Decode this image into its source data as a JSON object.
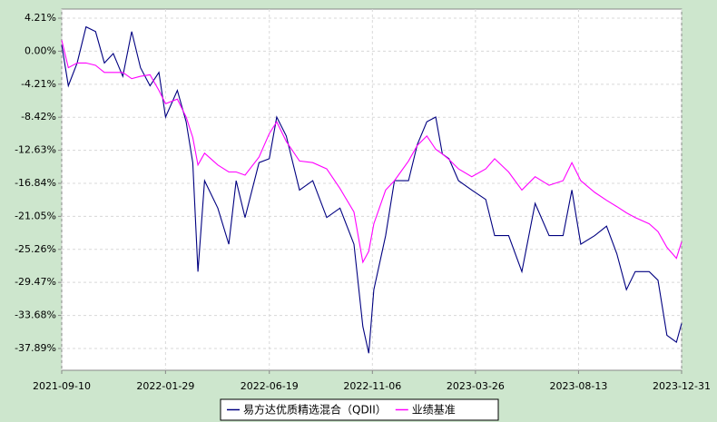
{
  "chart_data": {
    "type": "line",
    "x": [
      "2021-09-10",
      "2021-09-19",
      "2021-10-01",
      "2021-10-13",
      "2021-10-26",
      "2021-11-07",
      "2021-11-19",
      "2021-12-02",
      "2021-12-14",
      "2021-12-26",
      "2022-01-08",
      "2022-01-20",
      "2022-01-29",
      "2022-02-14",
      "2022-02-26",
      "2022-03-07",
      "2022-03-14",
      "2022-03-23",
      "2022-04-10",
      "2022-04-25",
      "2022-05-05",
      "2022-05-17",
      "2022-06-05",
      "2022-06-19",
      "2022-06-29",
      "2022-07-12",
      "2022-07-30",
      "2022-08-17",
      "2022-09-05",
      "2022-09-23",
      "2022-10-12",
      "2022-10-24",
      "2022-11-01",
      "2022-11-08",
      "2022-11-24",
      "2022-12-06",
      "2022-12-25",
      "2023-01-06",
      "2023-01-19",
      "2023-01-31",
      "2023-02-09",
      "2023-02-18",
      "2023-03-03",
      "2023-03-21",
      "2023-04-09",
      "2023-04-21",
      "2023-05-10",
      "2023-05-28",
      "2023-06-15",
      "2023-07-04",
      "2023-07-23",
      "2023-08-04",
      "2023-08-16",
      "2023-09-04",
      "2023-09-20",
      "2023-10-04",
      "2023-10-17",
      "2023-10-29",
      "2023-11-17",
      "2023-11-29",
      "2023-12-11",
      "2023-12-24",
      "2023-12-31"
    ],
    "series": [
      {
        "name": "易方达优质精选混合（QDII）",
        "color": "#000080",
        "values": [
          0.8,
          -4.4,
          -1.5,
          3.1,
          2.5,
          -1.5,
          -0.3,
          -3.2,
          2.5,
          -2.1,
          -4.4,
          -2.7,
          -8.4,
          -5.0,
          -9.0,
          -14.2,
          -28.1,
          -16.5,
          -20.0,
          -24.6,
          -16.5,
          -21.2,
          -14.2,
          -13.7,
          -8.4,
          -10.8,
          -17.7,
          -16.5,
          -21.2,
          -20.0,
          -24.6,
          -35.1,
          -38.5,
          -30.4,
          -23.5,
          -16.5,
          -16.5,
          -11.9,
          -9.0,
          -8.4,
          -13.1,
          -13.7,
          -16.5,
          -17.7,
          -18.9,
          -23.5,
          -23.5,
          -28.1,
          -19.4,
          -23.5,
          -23.5,
          -17.7,
          -24.6,
          -23.5,
          -22.3,
          -25.8,
          -30.4,
          -28.1,
          -28.1,
          -29.2,
          -36.2,
          -37.1,
          -34.7
        ]
      },
      {
        "name": "业绩基准",
        "color": "#ff00ff",
        "values": [
          1.4,
          -2.1,
          -1.5,
          -1.5,
          -1.8,
          -2.7,
          -2.7,
          -2.7,
          -3.5,
          -3.2,
          -3.0,
          -5.0,
          -6.7,
          -6.1,
          -8.4,
          -11,
          -14.5,
          -13,
          -14.5,
          -15.4,
          -15.4,
          -15.8,
          -13.5,
          -10.5,
          -9.0,
          -11.5,
          -14,
          -14.2,
          -15,
          -17.5,
          -20.5,
          -26.9,
          -25.5,
          -22,
          -17.7,
          -16.5,
          -14,
          -12,
          -10.8,
          -12.5,
          -13.1,
          -13.8,
          -15,
          -16,
          -15,
          -13.7,
          -15.4,
          -17.7,
          -16,
          -17.1,
          -16.5,
          -14.2,
          -16.5,
          -18,
          -19,
          -19.8,
          -20.6,
          -21.2,
          -22,
          -23,
          -25,
          -26.4,
          -24.3
        ]
      }
    ],
    "xlim": [
      "2021-09-10",
      "2023-12-31"
    ],
    "xticks": [
      "2021-09-10",
      "2022-01-29",
      "2022-06-19",
      "2022-11-06",
      "2023-03-26",
      "2023-08-13",
      "2023-12-31"
    ],
    "ylim": [
      -40.67,
      5.37
    ],
    "yticks": [
      {
        "value": 4.21,
        "label": "4.21%"
      },
      {
        "value": 0,
        "label": "0.00%"
      },
      {
        "value": -4.21,
        "label": "-4.21%"
      },
      {
        "value": -8.42,
        "label": "-8.42%"
      },
      {
        "value": -12.63,
        "label": "-12.63%"
      },
      {
        "value": -16.84,
        "label": "-16.84%"
      },
      {
        "value": -21.05,
        "label": "-21.05%"
      },
      {
        "value": -25.26,
        "label": "-25.26%"
      },
      {
        "value": -29.47,
        "label": "-29.47%"
      },
      {
        "value": -33.68,
        "label": "-33.68%"
      },
      {
        "value": -37.89,
        "label": "-37.89%"
      }
    ],
    "grid": true
  }
}
